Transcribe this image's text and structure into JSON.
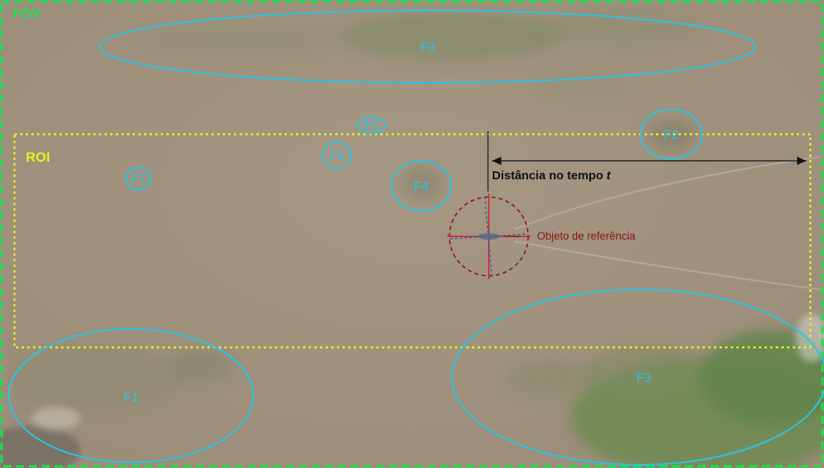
{
  "fov_label": "FOV",
  "roi_label": "ROI",
  "distance_label": "Distância no tempo",
  "distance_var": "t",
  "reference_label": "Objeto de referência",
  "features": [
    "F1",
    "F2",
    "F3",
    "F4",
    "F5",
    "F6",
    "F7",
    "F8"
  ],
  "colors": {
    "fov": "#22dd55",
    "roi": "#e6f21a",
    "feature": "#29c4e6",
    "reference": "#8b1515",
    "text_dark": "#111111"
  }
}
